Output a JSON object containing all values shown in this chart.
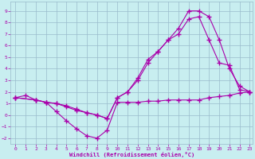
{
  "xlabel": "Windchill (Refroidissement éolien,°C)",
  "bg_color": "#c8eef0",
  "line_color": "#aa00aa",
  "grid_color": "#99bbcc",
  "xlim_min": -0.5,
  "xlim_max": 23.3,
  "ylim_min": -2.5,
  "ylim_max": 9.8,
  "xticks": [
    0,
    1,
    2,
    3,
    4,
    5,
    6,
    7,
    8,
    9,
    10,
    11,
    12,
    13,
    14,
    15,
    16,
    17,
    18,
    19,
    20,
    21,
    22,
    23
  ],
  "yticks": [
    -2,
    -1,
    0,
    1,
    2,
    3,
    4,
    5,
    6,
    7,
    8,
    9
  ],
  "line1_x": [
    0,
    1,
    2,
    3,
    4,
    5,
    6,
    7,
    8,
    9,
    10,
    11,
    12,
    13,
    14,
    15,
    16,
    17,
    18,
    19,
    20,
    21,
    22,
    23
  ],
  "line1_y": [
    1.5,
    1.7,
    1.3,
    1.1,
    0.3,
    -0.5,
    -1.2,
    -1.8,
    -2.0,
    -1.3,
    1.1,
    1.1,
    1.1,
    1.2,
    1.2,
    1.3,
    1.3,
    1.3,
    1.3,
    1.5,
    1.6,
    1.7,
    1.9,
    2.0
  ],
  "line2_x": [
    0,
    2,
    3,
    4,
    5,
    6,
    7,
    8,
    9,
    10,
    11,
    12,
    13,
    14,
    15,
    16,
    17,
    18,
    19,
    20,
    21,
    22,
    23
  ],
  "line2_y": [
    1.5,
    1.3,
    1.1,
    1.0,
    0.8,
    0.5,
    0.2,
    0.0,
    -0.3,
    1.5,
    2.0,
    3.2,
    4.8,
    5.5,
    6.5,
    7.5,
    9.0,
    9.0,
    8.5,
    6.5,
    4.0,
    2.5,
    2.0
  ],
  "line3_x": [
    0,
    2,
    3,
    4,
    5,
    6,
    7,
    8,
    9,
    10,
    11,
    12,
    13,
    14,
    15,
    16,
    17,
    18,
    19,
    20,
    21,
    22,
    23
  ],
  "line3_y": [
    1.5,
    1.3,
    1.1,
    1.0,
    0.7,
    0.4,
    0.2,
    0.0,
    -0.3,
    1.5,
    2.0,
    3.0,
    4.5,
    5.5,
    6.5,
    7.0,
    8.3,
    8.5,
    6.5,
    4.5,
    4.3,
    2.2,
    2.0
  ]
}
